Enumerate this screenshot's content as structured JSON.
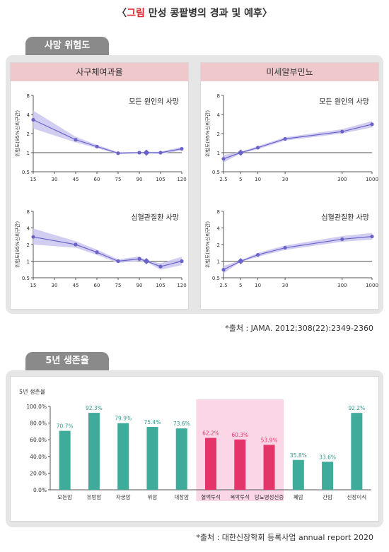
{
  "page": {
    "title_open": "〈",
    "title_red": "그림",
    "title_rest": " 만성 콩팥병의 경과 및 예후",
    "title_close": "〉"
  },
  "section1": {
    "tab": "사망 위험도",
    "source": "*출처 : JAMA. 2012;308(22):2349-2360"
  },
  "section2": {
    "tab": "5년 생존율",
    "source": "*출처 : 대한신장학회 등록사업 annual report 2020"
  },
  "colors": {
    "line": "#6a63c9",
    "band": "#c9c6ef",
    "bar": "#3fab9a",
    "bar_label": "#2f9a88",
    "bar_highlight": "#e3356a",
    "highlight_bg": "#fbd6e6",
    "header": "#efc8cc"
  },
  "chart_data": [
    {
      "type": "line",
      "column_title": "사구체여과율",
      "title": "모든 원인의 사망",
      "ylabel": "위험도(95%신뢰구간)",
      "yticks": [
        "8",
        "4",
        "2",
        "1",
        "0.5"
      ],
      "ytick_values": [
        8,
        4,
        2,
        1,
        0.5
      ],
      "xticks": [
        "15",
        "30",
        "45",
        "60",
        "75",
        "90",
        "105",
        "120"
      ],
      "xtick_values": [
        15,
        30,
        45,
        60,
        75,
        90,
        105,
        120
      ],
      "xlim": [
        15,
        120
      ],
      "y_scale": "log",
      "points": [
        [
          15,
          3.3
        ],
        [
          45,
          1.6
        ],
        [
          60,
          1.25
        ],
        [
          75,
          0.98
        ],
        [
          90,
          1.0
        ],
        [
          95,
          1.0
        ],
        [
          105,
          1.0
        ],
        [
          120,
          1.15
        ]
      ],
      "ref_marker_x": 95,
      "band_lower": [
        2.4,
        1.45,
        1.18,
        0.95,
        0.97,
        0.97,
        0.96,
        1.08
      ],
      "band_upper": [
        4.6,
        1.78,
        1.33,
        1.02,
        1.03,
        1.03,
        1.04,
        1.23
      ]
    },
    {
      "type": "line",
      "column_title": "미세알부민뇨",
      "title": "모든 원인의 사망",
      "ylabel": "위험도(95%신뢰구간)",
      "yticks": [
        "8",
        "4",
        "2",
        "1",
        "0.5"
      ],
      "ytick_values": [
        8,
        4,
        2,
        1,
        0.5
      ],
      "xticks": [
        "2.5",
        "5",
        "10",
        "30",
        "300",
        "1000"
      ],
      "xtick_values": [
        2.5,
        5,
        10,
        30,
        300,
        1000
      ],
      "xlim": [
        2.5,
        1000
      ],
      "x_scale": "log",
      "y_scale": "log",
      "points": [
        [
          2.5,
          0.8
        ],
        [
          5,
          1.0
        ],
        [
          10,
          1.2
        ],
        [
          30,
          1.65
        ],
        [
          300,
          2.15
        ],
        [
          1000,
          2.8
        ]
      ],
      "ref_marker_x": 5,
      "band_lower": [
        0.7,
        0.97,
        1.13,
        1.55,
        2.0,
        2.5
      ],
      "band_upper": [
        0.92,
        1.03,
        1.27,
        1.75,
        2.35,
        3.15
      ]
    },
    {
      "type": "line",
      "column_title": "사구체여과율",
      "title": "심혈관질환 사망",
      "ylabel": "위험도(95%신뢰구간)",
      "yticks": [
        "8",
        "4",
        "2",
        "1",
        "0.5"
      ],
      "ytick_values": [
        8,
        4,
        2,
        1,
        0.5
      ],
      "xticks": [
        "15",
        "30",
        "45",
        "60",
        "75",
        "90",
        "105",
        "120"
      ],
      "xtick_values": [
        15,
        30,
        45,
        60,
        75,
        90,
        105,
        120
      ],
      "xlim": [
        15,
        120
      ],
      "y_scale": "log",
      "points": [
        [
          15,
          2.75
        ],
        [
          45,
          2.0
        ],
        [
          60,
          1.45
        ],
        [
          75,
          1.0
        ],
        [
          90,
          1.1
        ],
        [
          95,
          1.0
        ],
        [
          105,
          0.8
        ],
        [
          120,
          1.0
        ]
      ],
      "ref_marker_x": 95,
      "band_lower": [
        2.0,
        1.75,
        1.3,
        0.93,
        1.0,
        0.97,
        0.7,
        0.85
      ],
      "band_upper": [
        3.9,
        2.3,
        1.62,
        1.08,
        1.22,
        1.03,
        0.92,
        1.2
      ]
    },
    {
      "type": "line",
      "column_title": "미세알부민뇨",
      "title": "심혈관질환 사망",
      "ylabel": "위험도(95%신뢰구간)",
      "yticks": [
        "8",
        "4",
        "2",
        "1",
        "0.5"
      ],
      "ytick_values": [
        8,
        4,
        2,
        1,
        0.5
      ],
      "xticks": [
        "2.5",
        "5",
        "10",
        "30",
        "300",
        "1000"
      ],
      "xtick_values": [
        2.5,
        5,
        10,
        30,
        300,
        1000
      ],
      "xlim": [
        2.5,
        1000
      ],
      "x_scale": "log",
      "y_scale": "log",
      "points": [
        [
          2.5,
          0.7
        ],
        [
          5,
          1.0
        ],
        [
          10,
          1.3
        ],
        [
          30,
          1.75
        ],
        [
          300,
          2.5
        ],
        [
          1000,
          2.8
        ]
      ],
      "ref_marker_x": 5,
      "band_lower": [
        0.6,
        0.97,
        1.2,
        1.6,
        2.25,
        2.45
      ],
      "band_upper": [
        0.82,
        1.03,
        1.42,
        1.92,
        2.85,
        3.25
      ]
    },
    {
      "type": "bar",
      "ylabel": "5년 생존율",
      "yticks": [
        "100.0%",
        "80.0%",
        "60.0%",
        "40.0%",
        "20.0%",
        "0.0%"
      ],
      "ylim": [
        0,
        100
      ],
      "categories": [
        "모든암",
        "유방암",
        "자궁암",
        "위암",
        "대장암",
        "혈액투석",
        "복막투석",
        "당뇨병성신증",
        "폐암",
        "간암",
        "신장이식"
      ],
      "values": [
        70.7,
        92.3,
        79.9,
        75.4,
        73.6,
        62.2,
        60.3,
        53.9,
        35.8,
        33.6,
        92.2
      ],
      "labels": [
        "70.7%",
        "92.3%",
        "79.9%",
        "75.4%",
        "73.6%",
        "62.2%",
        "60.3%",
        "53.9%",
        "35.8%",
        "33.6%",
        "92.2%"
      ],
      "highlight": [
        false,
        false,
        false,
        false,
        false,
        true,
        true,
        true,
        false,
        false,
        false
      ]
    }
  ]
}
